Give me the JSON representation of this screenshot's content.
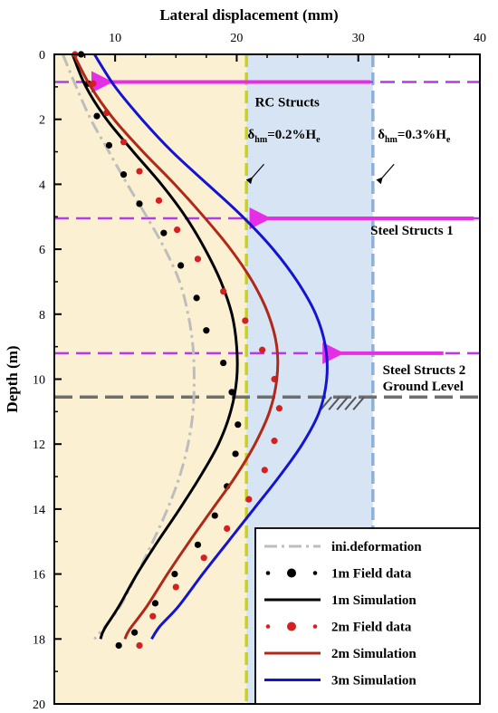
{
  "chart_data": {
    "type": "line",
    "xlabel": "Lateral displacement (mm)",
    "ylabel": "Depth (m)",
    "xlim": [
      5,
      40
    ],
    "ylim": [
      0,
      20
    ],
    "y_inverted": true,
    "x_axis_position": "top",
    "x_ticks": [
      "10",
      "20",
      "30",
      "40"
    ],
    "y_ticks": [
      "0",
      "2",
      "4",
      "6",
      "8",
      "10",
      "12",
      "14",
      "16",
      "18",
      "20"
    ],
    "legend_position": "bottom-right",
    "zones": [
      {
        "x_from": 5,
        "x_to": 20.8,
        "color": "#fbf1d2"
      },
      {
        "x_from": 20.8,
        "x_to": 31.2,
        "color": "#d6e4f3"
      }
    ],
    "vertical_lines": [
      {
        "x": 20.8,
        "color": "#c8d21e"
      },
      {
        "x": 31.2,
        "color": "#8fb0d8"
      }
    ],
    "horizontal_lines": [
      {
        "y": 0.85,
        "color": "#b23ce6",
        "arrow_from_x": 31,
        "arrow_to_x": 8.5,
        "label": "RC Structs",
        "label_x": 21.5,
        "label_y": 1.6
      },
      {
        "y": 5.05,
        "color": "#b23ce6",
        "arrow_from_x": 39.5,
        "arrow_to_x": 21.5,
        "label": "Steel Structs 1",
        "label_x": 31,
        "label_y": 5.55
      },
      {
        "y": 9.2,
        "color": "#b23ce6",
        "arrow_from_x": 37,
        "arrow_to_x": 27.5,
        "label": "Steel Structs 2",
        "label_x": 32,
        "label_y": 9.85
      }
    ],
    "ground_level": {
      "y": 10.55,
      "label": "Ground Level",
      "color": "#6e6e6e"
    },
    "annotations": [
      {
        "text_main": "δ",
        "sub": "hm",
        "text_rest": "=0.2%H",
        "sub2": "e",
        "x": 20.9,
        "y": 2.6
      },
      {
        "text_main": "δ",
        "sub": "hm",
        "text_rest": "=0.3%H",
        "sub2": "e",
        "x": 31.6,
        "y": 2.6
      }
    ],
    "series": [
      {
        "name": "ini.deformation",
        "kind": "line",
        "color": "#bdbdbd",
        "dash": "dashdot",
        "x": [
          5.7,
          6.8,
          8.0,
          9.5,
          11.0,
          12.6,
          14.1,
          15.3,
          16.0,
          16.4,
          16.5,
          16.4,
          16.0,
          15.3,
          14.3,
          13.1,
          11.8,
          10.4,
          9.2,
          8.3
        ],
        "y": [
          0,
          1,
          2,
          3,
          4,
          5,
          6,
          7,
          8,
          9,
          10,
          11,
          12,
          13,
          14,
          15,
          16,
          17,
          17.6,
          18
        ]
      },
      {
        "name": "1m Field data",
        "kind": "scatter",
        "color": "#000000",
        "x": [
          7.2,
          7.8,
          8.5,
          9.5,
          10.7,
          12.0,
          14.0,
          15.4,
          16.7,
          17.5,
          18.9,
          19.6,
          20.1,
          19.9,
          19.2,
          18.2,
          16.8,
          14.9,
          13.3,
          11.6,
          10.3
        ],
        "y": [
          0,
          0.9,
          1.9,
          2.8,
          3.7,
          4.6,
          5.5,
          6.5,
          7.5,
          8.5,
          9.5,
          10.4,
          11.4,
          12.3,
          13.3,
          14.2,
          15.1,
          16.0,
          16.9,
          17.8,
          18.2
        ]
      },
      {
        "name": "1m Simulation",
        "kind": "line",
        "color": "#000000",
        "x": [
          6.5,
          7.6,
          9.3,
          11.5,
          13.8,
          15.8,
          17.4,
          18.7,
          19.6,
          20.0,
          20.0,
          19.5,
          18.5,
          17.0,
          15.3,
          13.5,
          11.8,
          10.3,
          9.1,
          8.8
        ],
        "y": [
          0,
          1,
          2,
          3,
          4,
          5,
          6,
          7,
          8,
          9,
          10,
          11,
          12,
          13,
          14,
          15,
          16,
          17,
          17.7,
          18
        ]
      },
      {
        "name": "2m Field data",
        "kind": "scatter",
        "color": "#d42020",
        "x": [
          6.7,
          8.2,
          9.3,
          10.7,
          12.0,
          13.6,
          15.1,
          16.8,
          18.9,
          20.7,
          22.1,
          23.1,
          23.5,
          23.1,
          22.3,
          21.0,
          19.2,
          17.3,
          15.0,
          13.1,
          12.0
        ],
        "y": [
          0,
          0.9,
          1.8,
          2.7,
          3.6,
          4.5,
          5.4,
          6.3,
          7.3,
          8.2,
          9.1,
          10.0,
          10.9,
          11.9,
          12.8,
          13.7,
          14.6,
          15.5,
          16.4,
          17.3,
          18.2
        ]
      },
      {
        "name": "2m Simulation",
        "kind": "line",
        "color": "#b02818",
        "x": [
          6.6,
          8.0,
          9.9,
          12.3,
          14.9,
          17.3,
          19.5,
          21.3,
          22.6,
          23.3,
          23.3,
          22.7,
          21.5,
          19.9,
          18.0,
          16.1,
          14.3,
          12.6,
          11.2,
          10.8
        ],
        "y": [
          0,
          1,
          2,
          3,
          4,
          5,
          6,
          7,
          8,
          9,
          10,
          11,
          12,
          13,
          14,
          15,
          16,
          17,
          17.7,
          18
        ]
      },
      {
        "name": "3m Simulation",
        "kind": "line",
        "color": "#1414d0",
        "x": [
          8.3,
          10.0,
          12.2,
          14.7,
          17.6,
          20.5,
          23.0,
          25.0,
          26.5,
          27.3,
          27.4,
          26.8,
          25.4,
          23.5,
          21.4,
          19.3,
          17.2,
          15.2,
          13.7,
          13.0
        ],
        "y": [
          0,
          1,
          2,
          3,
          4,
          5,
          6,
          7,
          8,
          9,
          10,
          11,
          12,
          13,
          14,
          15,
          16,
          17,
          17.6,
          18
        ]
      }
    ]
  }
}
